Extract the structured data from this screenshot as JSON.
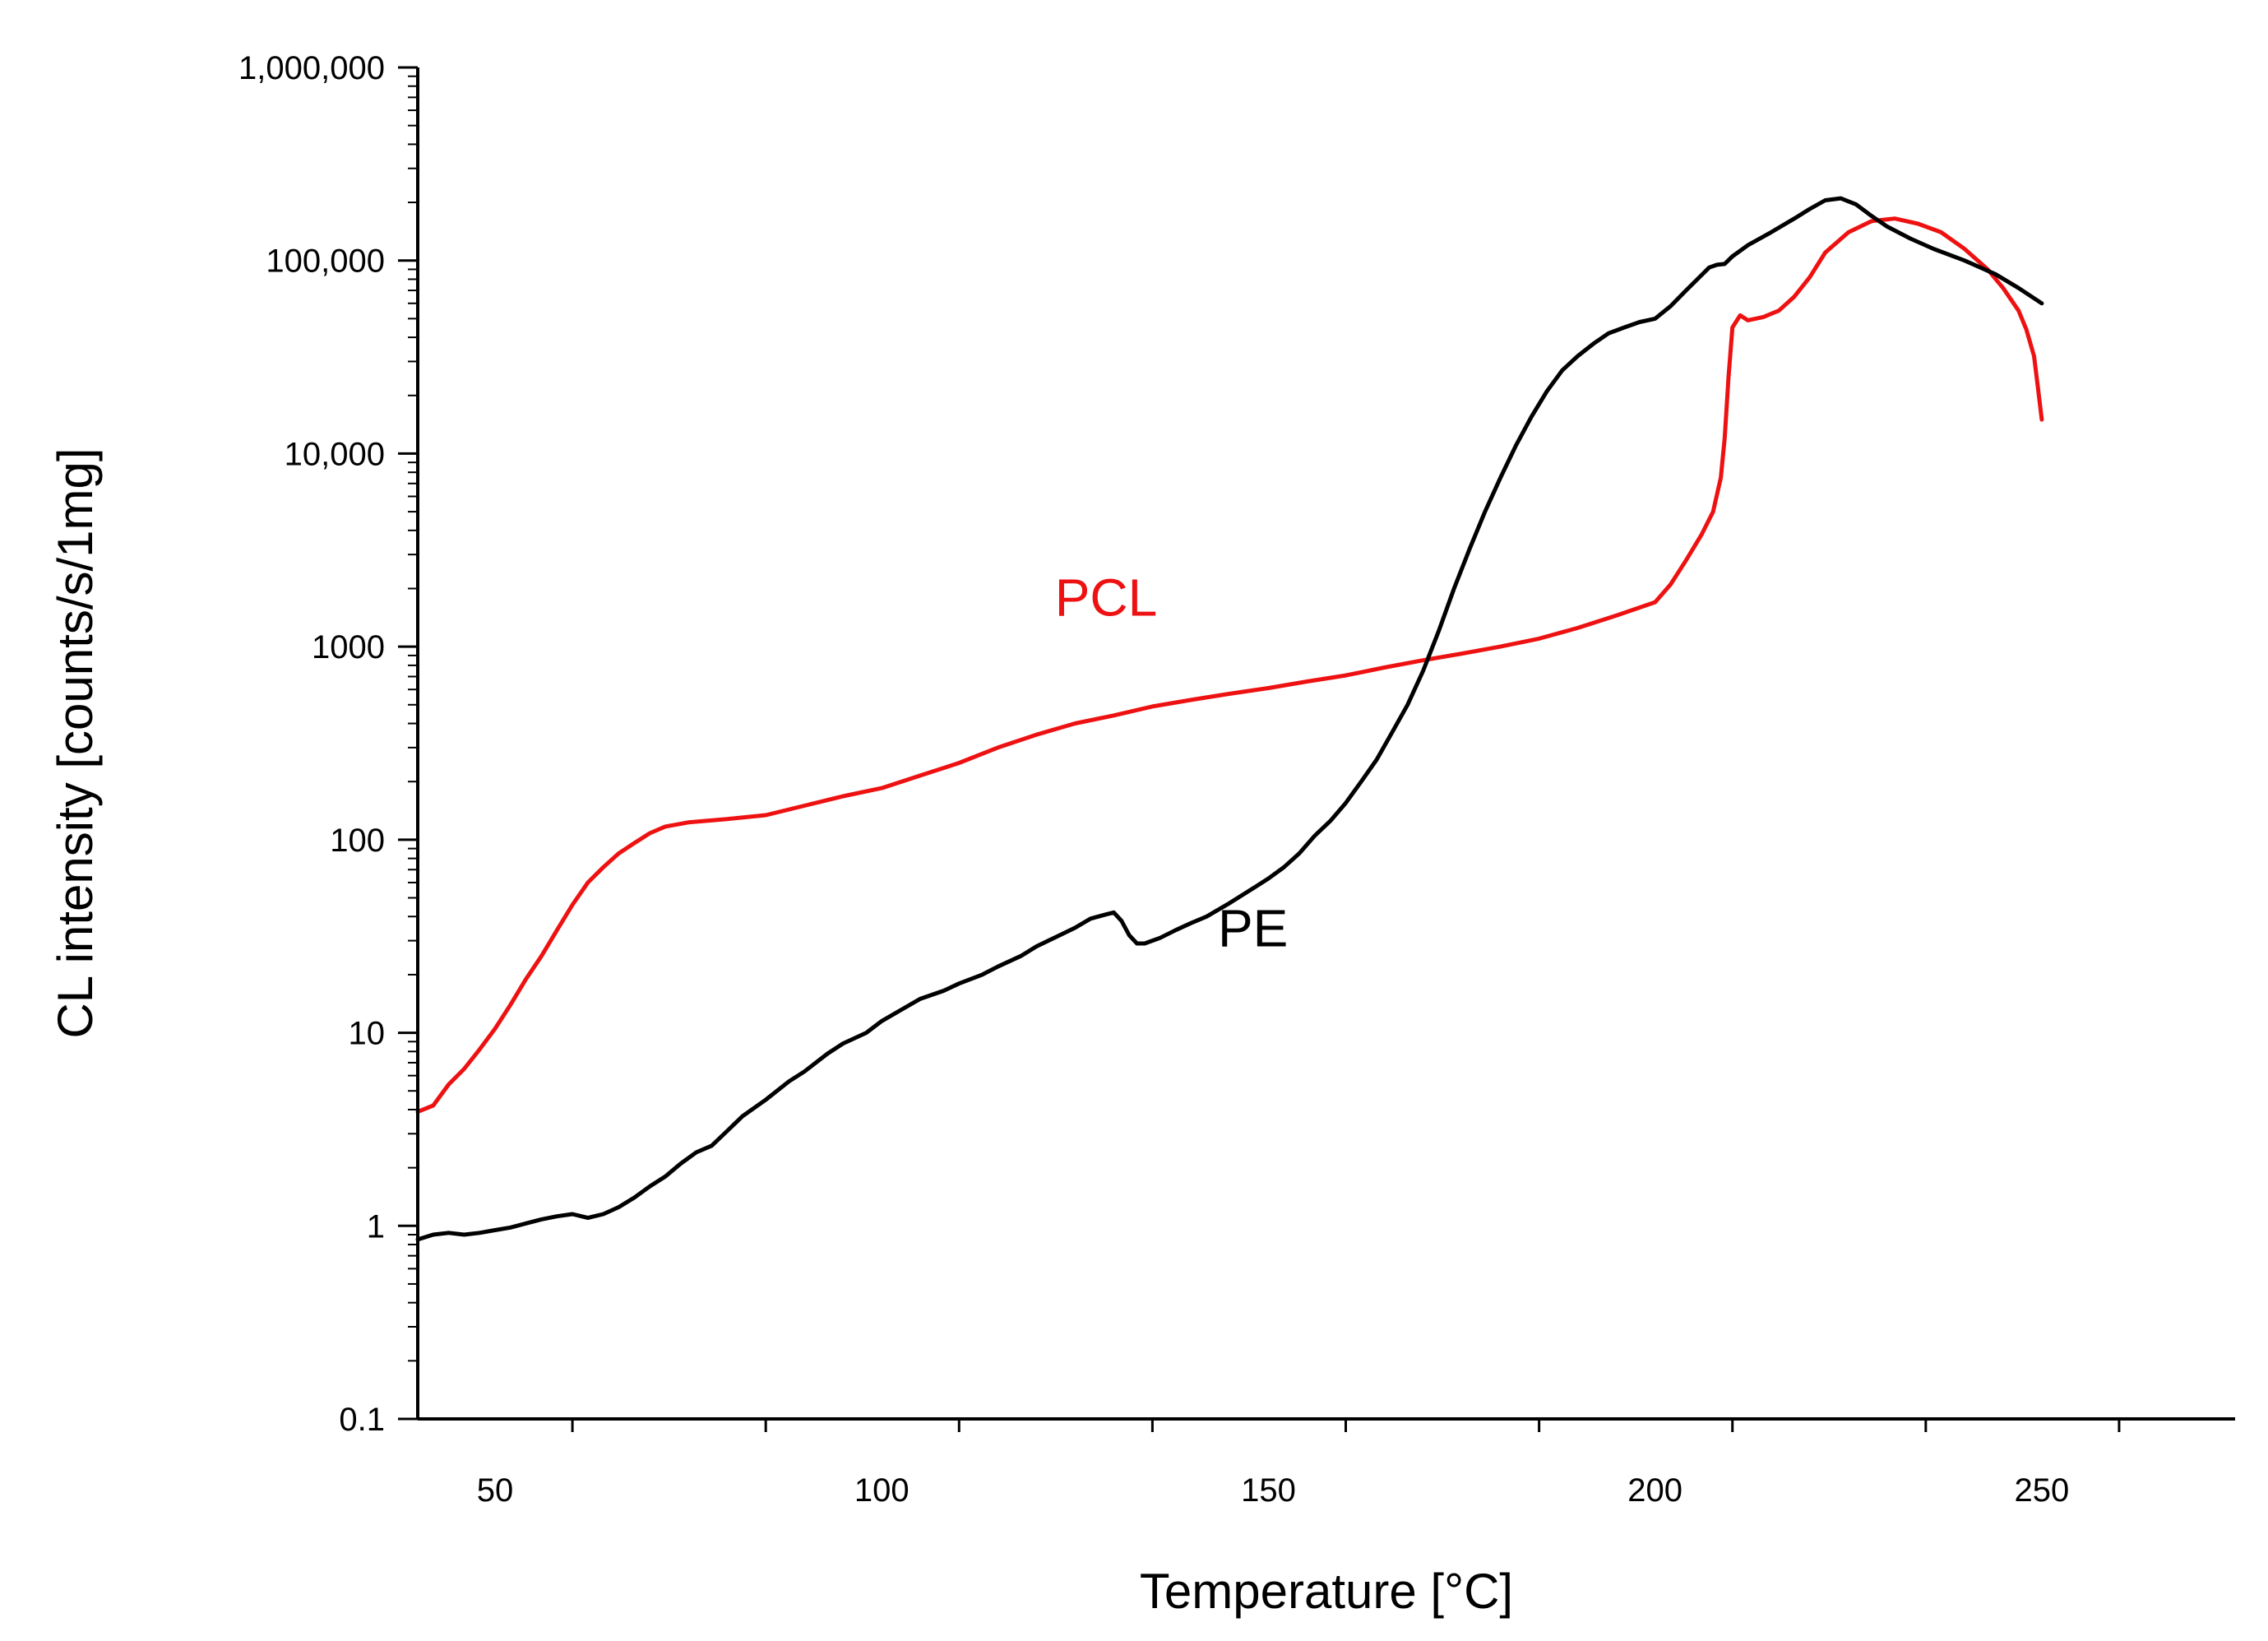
{
  "chart_data": {
    "type": "line",
    "title": "",
    "xlabel": "Temperature [°C]",
    "ylabel": "CL intensity [counts/s/1mg]",
    "xlim": [
      40,
      275
    ],
    "ylim": [
      0.1,
      1000000
    ],
    "yscale": "log",
    "x_ticks": [
      50,
      100,
      150,
      200,
      250
    ],
    "x_tick_labels": [
      "50",
      "100",
      "150",
      "200",
      "250"
    ],
    "y_ticks": [
      0.1,
      1,
      10,
      100,
      1000,
      10000,
      100000,
      1000000
    ],
    "y_tick_labels": [
      "0.1",
      "1",
      "10",
      "100",
      "1000",
      "10,000",
      "100,000",
      "1,000,000"
    ],
    "grid": false,
    "series": [
      {
        "name": "PCL",
        "label": "PCL",
        "color": "#ee1111",
        "label_at": [
          129,
          1450
        ],
        "points": [
          [
            40,
            3.9
          ],
          [
            42,
            4.2
          ],
          [
            44,
            5.4
          ],
          [
            46,
            6.5
          ],
          [
            48,
            8.2
          ],
          [
            50,
            10.5
          ],
          [
            52,
            14
          ],
          [
            54,
            19
          ],
          [
            56,
            25
          ],
          [
            58,
            34
          ],
          [
            60,
            46
          ],
          [
            62,
            60
          ],
          [
            64,
            72
          ],
          [
            66,
            85
          ],
          [
            68,
            96
          ],
          [
            70,
            108
          ],
          [
            72,
            117
          ],
          [
            75,
            123
          ],
          [
            80,
            128
          ],
          [
            85,
            134
          ],
          [
            90,
            150
          ],
          [
            95,
            168
          ],
          [
            100,
            185
          ],
          [
            105,
            215
          ],
          [
            110,
            250
          ],
          [
            115,
            300
          ],
          [
            120,
            350
          ],
          [
            125,
            400
          ],
          [
            130,
            440
          ],
          [
            135,
            490
          ],
          [
            140,
            530
          ],
          [
            145,
            570
          ],
          [
            150,
            610
          ],
          [
            155,
            660
          ],
          [
            160,
            710
          ],
          [
            165,
            780
          ],
          [
            170,
            850
          ],
          [
            175,
            920
          ],
          [
            180,
            1000
          ],
          [
            185,
            1100
          ],
          [
            190,
            1250
          ],
          [
            195,
            1450
          ],
          [
            200,
            1700
          ],
          [
            202,
            2100
          ],
          [
            204,
            2800
          ],
          [
            206,
            3800
          ],
          [
            207.5,
            5000
          ],
          [
            208.5,
            7500
          ],
          [
            209,
            12000
          ],
          [
            209.5,
            25000
          ],
          [
            210,
            45000
          ],
          [
            211,
            52000
          ],
          [
            212,
            49000
          ],
          [
            214,
            51000
          ],
          [
            216,
            55000
          ],
          [
            218,
            65000
          ],
          [
            220,
            82000
          ],
          [
            222,
            110000
          ],
          [
            225,
            140000
          ],
          [
            228,
            160000
          ],
          [
            231,
            165000
          ],
          [
            234,
            155000
          ],
          [
            237,
            140000
          ],
          [
            240,
            115000
          ],
          [
            243,
            90000
          ],
          [
            245,
            72000
          ],
          [
            247,
            55000
          ],
          [
            248,
            44000
          ],
          [
            249,
            32000
          ],
          [
            249.5,
            22000
          ],
          [
            250,
            15000
          ]
        ]
      },
      {
        "name": "PE",
        "label": "PE",
        "color": "#000000",
        "label_at": [
          148,
          28
        ],
        "points": [
          [
            40,
            0.85
          ],
          [
            42,
            0.9
          ],
          [
            44,
            0.92
          ],
          [
            46,
            0.9
          ],
          [
            48,
            0.92
          ],
          [
            50,
            0.95
          ],
          [
            52,
            0.98
          ],
          [
            54,
            1.03
          ],
          [
            56,
            1.08
          ],
          [
            58,
            1.12
          ],
          [
            60,
            1.15
          ],
          [
            62,
            1.1
          ],
          [
            64,
            1.15
          ],
          [
            66,
            1.25
          ],
          [
            68,
            1.4
          ],
          [
            70,
            1.6
          ],
          [
            72,
            1.8
          ],
          [
            74,
            2.1
          ],
          [
            76,
            2.4
          ],
          [
            78,
            2.6
          ],
          [
            80,
            3.1
          ],
          [
            82,
            3.7
          ],
          [
            85,
            4.5
          ],
          [
            88,
            5.6
          ],
          [
            90,
            6.3
          ],
          [
            93,
            7.8
          ],
          [
            95,
            8.8
          ],
          [
            98,
            10
          ],
          [
            100,
            11.5
          ],
          [
            103,
            13.5
          ],
          [
            105,
            15
          ],
          [
            108,
            16.5
          ],
          [
            110,
            18
          ],
          [
            113,
            20
          ],
          [
            115,
            22
          ],
          [
            118,
            25
          ],
          [
            120,
            28
          ],
          [
            123,
            32
          ],
          [
            125,
            35
          ],
          [
            127,
            39
          ],
          [
            129,
            41
          ],
          [
            130,
            42
          ],
          [
            131,
            38
          ],
          [
            132,
            32
          ],
          [
            133,
            29
          ],
          [
            134,
            29
          ],
          [
            136,
            31
          ],
          [
            138,
            34
          ],
          [
            140,
            37
          ],
          [
            142,
            40
          ],
          [
            145,
            47
          ],
          [
            148,
            56
          ],
          [
            150,
            63
          ],
          [
            152,
            72
          ],
          [
            154,
            85
          ],
          [
            156,
            105
          ],
          [
            158,
            125
          ],
          [
            160,
            155
          ],
          [
            162,
            200
          ],
          [
            164,
            260
          ],
          [
            166,
            360
          ],
          [
            168,
            500
          ],
          [
            170,
            750
          ],
          [
            172,
            1200
          ],
          [
            174,
            2000
          ],
          [
            176,
            3200
          ],
          [
            178,
            5000
          ],
          [
            180,
            7500
          ],
          [
            182,
            11000
          ],
          [
            184,
            15500
          ],
          [
            186,
            21000
          ],
          [
            188,
            27000
          ],
          [
            190,
            32000
          ],
          [
            192,
            37000
          ],
          [
            194,
            42000
          ],
          [
            196,
            45000
          ],
          [
            198,
            48000
          ],
          [
            200,
            50000
          ],
          [
            202,
            58000
          ],
          [
            204,
            70000
          ],
          [
            206,
            84000
          ],
          [
            207,
            92000
          ],
          [
            208,
            95000
          ],
          [
            209,
            96000
          ],
          [
            210,
            105000
          ],
          [
            212,
            120000
          ],
          [
            215,
            140000
          ],
          [
            218,
            165000
          ],
          [
            220,
            185000
          ],
          [
            222,
            205000
          ],
          [
            224,
            210000
          ],
          [
            226,
            195000
          ],
          [
            228,
            170000
          ],
          [
            230,
            150000
          ],
          [
            233,
            130000
          ],
          [
            236,
            115000
          ],
          [
            240,
            100000
          ],
          [
            244,
            85000
          ],
          [
            247,
            72000
          ],
          [
            250,
            60000
          ]
        ]
      }
    ]
  }
}
